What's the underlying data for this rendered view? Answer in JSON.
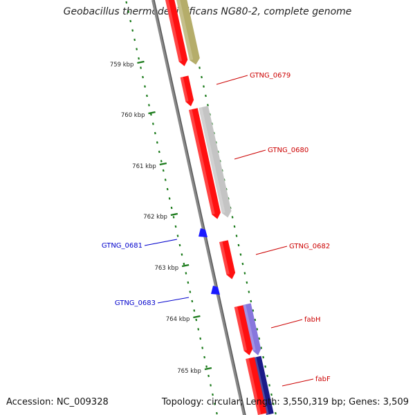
{
  "title": "Geobacillus thermodenitrificans NG80-2, complete genome",
  "footer": {
    "accession": "Accession: NC_009328",
    "summary": "Topology: circular; Length: 3,550,319 bp; Genes: 3,509"
  },
  "colors": {
    "backbone": "#888888",
    "ruler_ticks": "#1a7a1a",
    "forward_gene": "#ff1010",
    "reverse_gene": "#1a1aff",
    "forward_label": "#cc0000",
    "reverse_label": "#0000cc",
    "cds_band_olive": "#b5ad6a",
    "cds_band_gray": "#c4c4c4",
    "cds_band_purple": "#8877dd",
    "cds_band_navy": "#1a1a88"
  },
  "ruler": [
    {
      "label": "759 kbp"
    },
    {
      "label": "760 kbp"
    },
    {
      "label": "761 kbp"
    },
    {
      "label": "762 kbp"
    },
    {
      "label": "763 kbp"
    },
    {
      "label": "764 kbp"
    },
    {
      "label": "765 kbp"
    }
  ],
  "gene_labels": [
    {
      "text": "GTNG_0679",
      "strand": "forward"
    },
    {
      "text": "GTNG_0680",
      "strand": "forward"
    },
    {
      "text": "GTNG_0682",
      "strand": "forward"
    },
    {
      "text": "fabH",
      "strand": "forward"
    },
    {
      "text": "fabF",
      "strand": "forward"
    },
    {
      "text": "GTNG_0681",
      "strand": "reverse"
    },
    {
      "text": "GTNG_0683",
      "strand": "reverse"
    }
  ]
}
